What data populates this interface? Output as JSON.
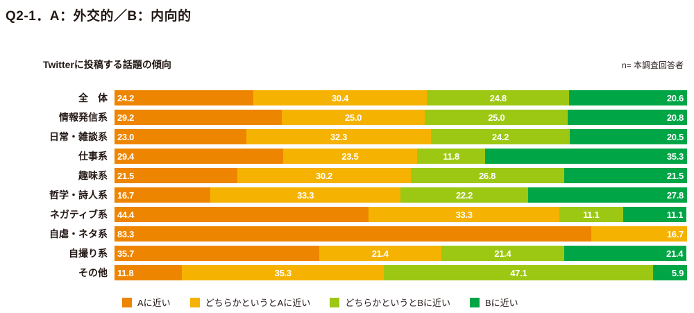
{
  "title": "Q2-1．A：外交的／B：内向的",
  "chart_header": {
    "subtitle": "Twitterに投稿する話題の傾向",
    "n_label": "n= 本調査回答者"
  },
  "chart_data": {
    "type": "bar",
    "orientation": "horizontal",
    "stacked": true,
    "unit": "%",
    "xlim": [
      0,
      100
    ],
    "grid": false,
    "legend_position": "bottom",
    "value_label_style": "one decimal, white, inside segment",
    "categories": [
      "全　体",
      "情報発信系",
      "日常・雑談系",
      "仕事系",
      "趣味系",
      "哲学・詩人系",
      "ネガティブ系",
      "自虐・ネタ系",
      "自撮り系",
      "その他"
    ],
    "series": [
      {
        "name": "Aに近い",
        "color": "#ee8500",
        "values": [
          24.2,
          29.2,
          23.0,
          29.4,
          21.5,
          16.7,
          44.4,
          83.3,
          35.7,
          11.8
        ]
      },
      {
        "name": "どちらかというとAに近い",
        "color": "#f5b200",
        "values": [
          30.4,
          25.0,
          32.3,
          23.5,
          30.2,
          33.3,
          33.3,
          16.7,
          21.4,
          35.3
        ]
      },
      {
        "name": "どちらかというとBに近い",
        "color": "#9cc813",
        "values": [
          24.8,
          25.0,
          24.2,
          11.8,
          26.8,
          22.2,
          11.1,
          0,
          21.4,
          47.1
        ]
      },
      {
        "name": "Bに近い",
        "color": "#00a546",
        "values": [
          20.6,
          20.8,
          20.5,
          35.3,
          21.5,
          27.8,
          11.1,
          0,
          21.4,
          5.9
        ]
      }
    ]
  }
}
